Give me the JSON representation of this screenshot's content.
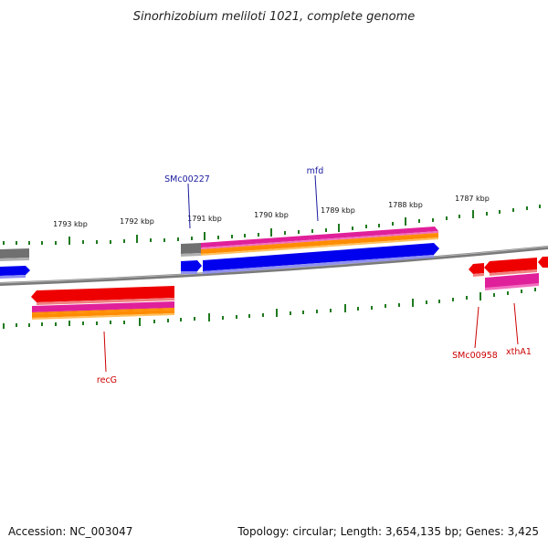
{
  "title": "Sinorhizobium meliloti 1021, complete genome",
  "footer": {
    "accession": "Accession: NC_003047",
    "stats": "Topology: circular; Length: 3,654,135 bp; Genes: 3,425"
  },
  "scale_labels": [
    "1793 kbp",
    "1792 kbp",
    "1791 kbp",
    "1790 kbp",
    "1789 kbp",
    "1788 kbp",
    "1787 kbp"
  ],
  "gene_labels": {
    "forward": [
      "SMc00227",
      "mfd"
    ],
    "reverse": [
      "recG",
      "SMc00958",
      "xthA1"
    ]
  },
  "colors": {
    "forward_label": "#1a1aa0",
    "reverse_label": "#cc0000",
    "cds_forward": "#0000ee",
    "cds_reverse": "#ee0000",
    "gene_magenta": "#e0209a",
    "gene_orange": "#ff8c00",
    "gene_gray": "#707070",
    "backbone": "#7a7a7a",
    "tick": "#1f7a1f"
  }
}
